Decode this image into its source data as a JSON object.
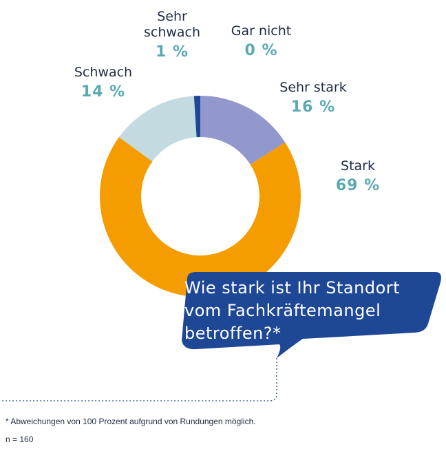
{
  "chart_data": {
    "type": "pie",
    "subtype": "donut",
    "title": "Wie stark ist Ihr Standort vom Fachkräftemangel betroffen?*",
    "slices": [
      {
        "label": "Sehr stark",
        "value": 16,
        "display": "16 %",
        "color": "#9297cc"
      },
      {
        "label": "Stark",
        "value": 69,
        "display": "69 %",
        "color": "#f59d00"
      },
      {
        "label": "Schwach",
        "value": 14,
        "display": "14 %",
        "color": "#c3dbe0"
      },
      {
        "label": "Sehr schwach",
        "value": 1,
        "display": "1 %",
        "color": "#1e4796"
      },
      {
        "label": "Gar nicht",
        "value": 0,
        "display": "0 %",
        "color": "#d9d9d9"
      }
    ]
  },
  "colors": {
    "percent_text": "#5aaab4",
    "label_text": "#1f2a44",
    "callout_bg": "#1e4796",
    "leader_line": "#1e4796"
  },
  "question": {
    "line1": "Wie stark ist Ihr Standort",
    "line2": "vom Fachkräftemangel",
    "line3": "betroffen?*"
  },
  "footnote": "* Abweichungen von 100 Prozent aufgrund von Rundungen möglich.",
  "sample_size": "n = 160"
}
